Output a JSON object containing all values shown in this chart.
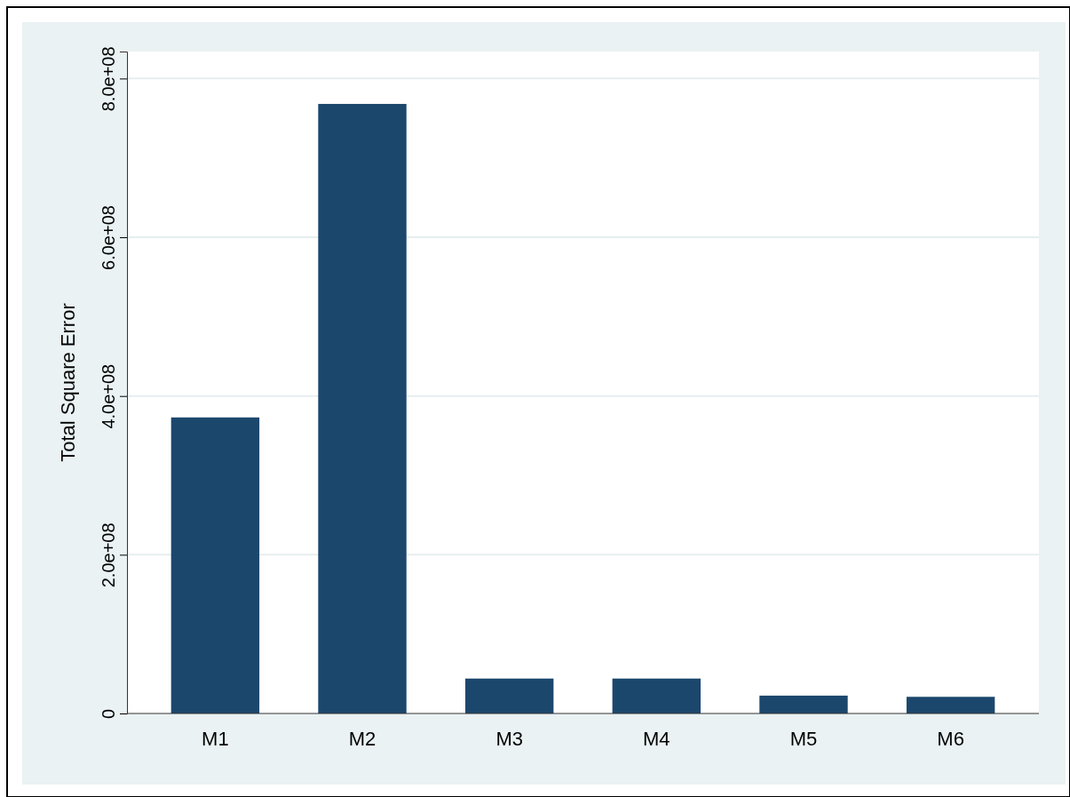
{
  "chart_data": {
    "type": "bar",
    "ylabel": "Total Square Error",
    "categories": [
      "M1",
      "M2",
      "M3",
      "M4",
      "M5",
      "M6"
    ],
    "values": [
      373000000,
      768000000,
      44000000,
      44000000,
      22500000,
      21000000
    ],
    "color": "#1c476d",
    "ylim": [
      0,
      834000000
    ],
    "yticks": [
      0,
      {
        "value": 200000000,
        "label": "2.0e+08"
      },
      {
        "value": 400000000,
        "label": "4.0e+08"
      },
      {
        "value": 600000000,
        "label": "6.0e+08"
      },
      {
        "value": 800000000,
        "label": "8.0e+08"
      }
    ],
    "grid": "y"
  }
}
